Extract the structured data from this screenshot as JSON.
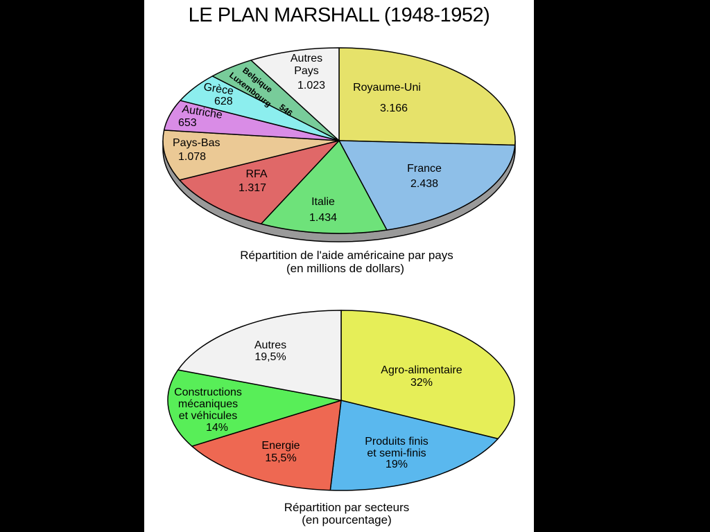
{
  "title": "LE PLAN MARSHALL (1948-1952)",
  "chart_data": [
    {
      "type": "pie",
      "caption_line1": "Répartition de l'aide américaine par pays",
      "caption_line2": "(en millions de dollars)",
      "slices": [
        {
          "label": "Royaume-Uni",
          "value_text": "3.166",
          "value": 3166,
          "color": "#e6e26a"
        },
        {
          "label": "France",
          "value_text": "2.438",
          "value": 2438,
          "color": "#8ebfe8"
        },
        {
          "label": "Italie",
          "value_text": "1.434",
          "value": 1434,
          "color": "#6ee27a"
        },
        {
          "label": "RFA",
          "value_text": "1.317",
          "value": 1317,
          "color": "#e06868"
        },
        {
          "label": "Pays-Bas",
          "value_text": "1.078",
          "value": 1078,
          "color": "#ebc995"
        },
        {
          "label": "Autriche",
          "value_text": "653",
          "value": 653,
          "color": "#d98ce6"
        },
        {
          "label": "Grèce",
          "value_text": "628",
          "value": 628,
          "color": "#8ceeee"
        },
        {
          "label": "Belgique Luxembourg",
          "line1": "Belgique",
          "line2": "Luxembourg",
          "value_text": "546",
          "value": 546,
          "color": "#78cc9a"
        },
        {
          "label": "Autres Pays",
          "line1": "Autres",
          "line2": "Pays",
          "value_text": "1.023",
          "value": 1023,
          "color": "#f2f2f2"
        }
      ]
    },
    {
      "type": "pie",
      "caption_line1": "Répartition par secteurs",
      "caption_line2": "(en pourcentage)",
      "slices": [
        {
          "label": "Agro-alimentaire",
          "value_text": "32%",
          "value": 32,
          "color": "#e6ee58"
        },
        {
          "label": "Produits finis et semi-finis",
          "line1": "Produits finis",
          "line2": "et semi-finis",
          "value_text": "19%",
          "value": 19,
          "color": "#5ab8ee"
        },
        {
          "label": "Energie",
          "value_text": "15,5%",
          "value": 15.5,
          "color": "#ee6852"
        },
        {
          "label": "Constructions mécaniques et véhicules",
          "line1": "Constructions",
          "line2": "mécaniques",
          "line3": "et véhicules",
          "value_text": "14%",
          "value": 14,
          "color": "#58ee58"
        },
        {
          "label": "Autres",
          "value_text": "19,5%",
          "value": 19.5,
          "color": "#f2f2f2"
        }
      ]
    }
  ]
}
